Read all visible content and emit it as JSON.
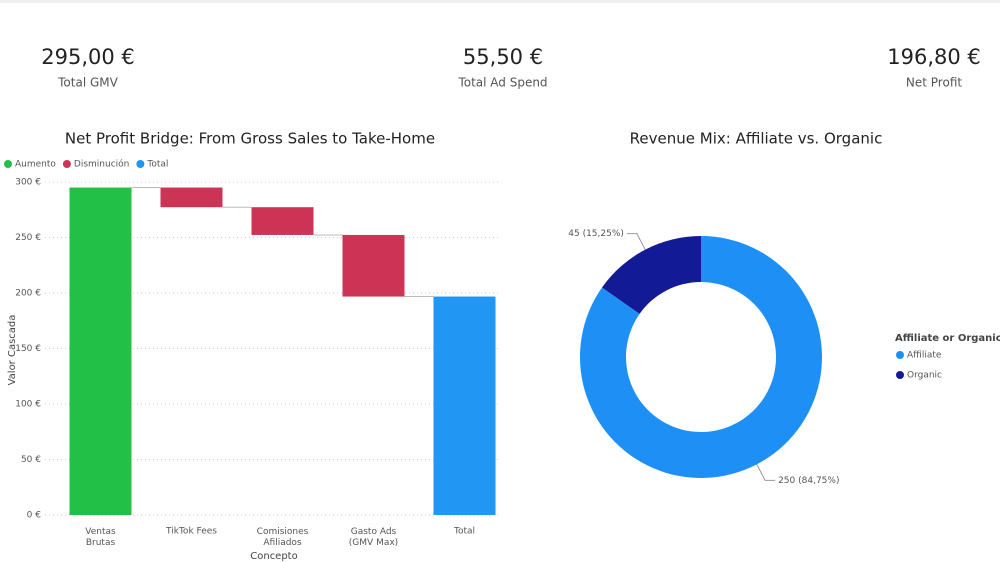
{
  "cards": [
    {
      "value": "295,00 €",
      "label": "Total GMV"
    },
    {
      "value": "55,50 €",
      "label": "Total Ad Spend"
    },
    {
      "value": "196,80 €",
      "label": "Net Profit"
    }
  ],
  "chart_data": [
    {
      "type": "waterfall",
      "title": "Net Profit Bridge: From Gross Sales to Take-Home",
      "legend": [
        {
          "name": "Aumento",
          "color": "#22c046"
        },
        {
          "name": "Disminución",
          "color": "#cc3355"
        },
        {
          "name": "Total",
          "color": "#2196f3"
        }
      ],
      "categories": [
        "Ventas Brutas",
        "TikTok Fees",
        "Comisiones Afiliados",
        "Gasto Ads (GMV Max)",
        "Total"
      ],
      "values": [
        295,
        -17.7,
        -25,
        -55.5,
        196.8
      ],
      "ylim": [
        0,
        305
      ],
      "yticks": [
        {
          "value": 0,
          "label": "0 €"
        },
        {
          "value": 50,
          "label": "50 €"
        },
        {
          "value": 100,
          "label": "100 €"
        },
        {
          "value": 150,
          "label": "150 €"
        },
        {
          "value": 200,
          "label": "200 €"
        },
        {
          "value": 250,
          "label": "250 €"
        },
        {
          "value": 300,
          "label": "300 €"
        }
      ],
      "ylabel": "Valor Cascada",
      "xlabel": "Concepto",
      "grid": true
    },
    {
      "type": "donut",
      "title": "Revenue Mix: Affiliate vs. Organic",
      "legend_title": "Affiliate or Organic?",
      "categories": [
        "Affiliate",
        "Organic"
      ],
      "values": [
        250,
        45
      ],
      "value_labels": [
        "250 (84,75%)",
        "45 (15,25%)"
      ],
      "colors": [
        "#1e90f5",
        "#131a96"
      ]
    }
  ]
}
